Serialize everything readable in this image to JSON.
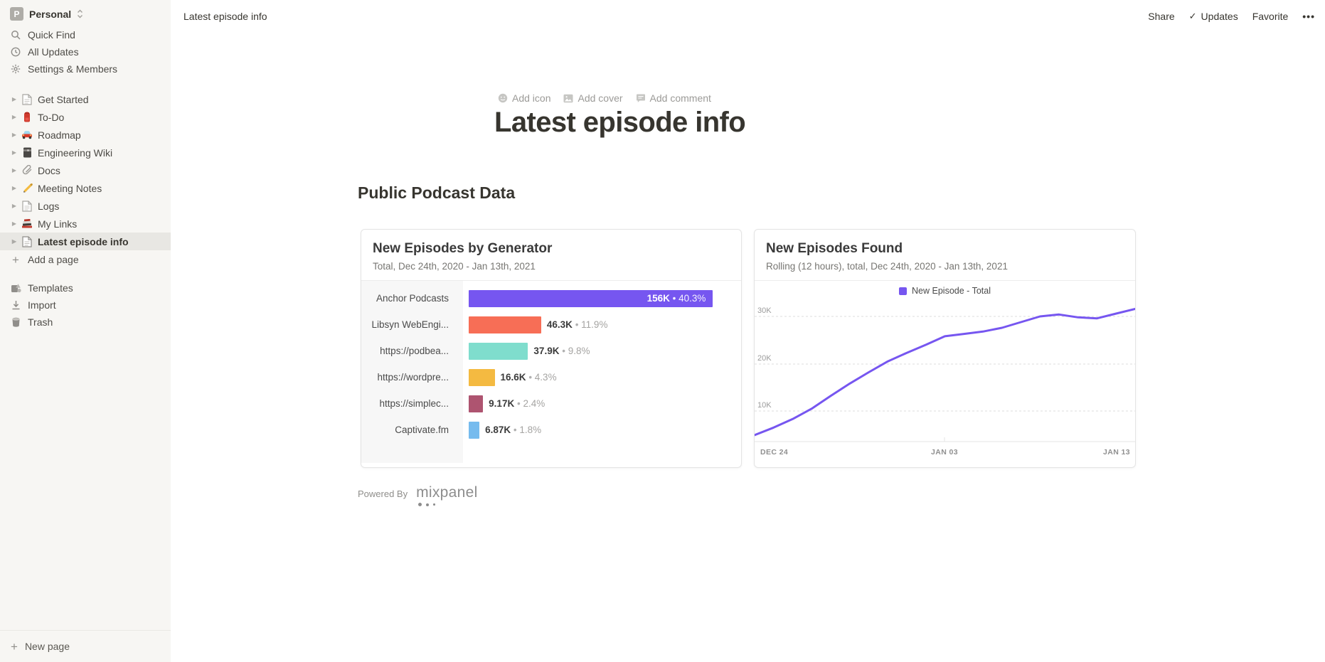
{
  "workspace": {
    "initial": "P",
    "name": "Personal"
  },
  "sidebar": {
    "menu": [
      {
        "label": "Quick Find"
      },
      {
        "label": "All Updates"
      },
      {
        "label": "Settings & Members"
      }
    ],
    "pages": [
      {
        "label": "Get Started",
        "icon": "page"
      },
      {
        "label": "To-Do",
        "icon": "backpack"
      },
      {
        "label": "Roadmap",
        "icon": "car"
      },
      {
        "label": "Engineering Wiki",
        "icon": "notebook"
      },
      {
        "label": "Docs",
        "icon": "paperclip"
      },
      {
        "label": "Meeting Notes",
        "icon": "pencil"
      },
      {
        "label": "Logs",
        "icon": "page"
      },
      {
        "label": "My Links",
        "icon": "books"
      },
      {
        "label": "Latest episode info",
        "icon": "page",
        "selected": true
      }
    ],
    "add_page_label": "Add a page",
    "footer": [
      {
        "label": "Templates"
      },
      {
        "label": "Import"
      },
      {
        "label": "Trash"
      }
    ],
    "new_page_label": "New page"
  },
  "topbar": {
    "breadcrumb": "Latest episode info",
    "share_label": "Share",
    "updates_label": "Updates",
    "favorite_label": "Favorite",
    "more_label": "•••"
  },
  "page": {
    "add_icon": "Add icon",
    "add_cover": "Add cover",
    "add_comment": "Add comment",
    "title": "Latest episode info",
    "section_heading": "Public Podcast Data",
    "powered_by": "Powered By",
    "mixpanel": "mixpanel"
  },
  "help_label": "?",
  "chart_data": [
    {
      "type": "bar",
      "title": "New Episodes by Generator",
      "subtitle": "Total, Dec 24th, 2020 - Jan 13th, 2021",
      "categories": [
        "Anchor Podcasts",
        "Libsyn WebEngi...",
        "https://podbea...",
        "https://wordpre...",
        "https://simplec...",
        "Captivate.fm"
      ],
      "values_k": [
        156,
        46.3,
        37.9,
        16.6,
        9.17,
        6.87
      ],
      "value_labels": [
        "156K",
        "46.3K",
        "37.9K",
        "16.6K",
        "9.17K",
        "6.87K"
      ],
      "percent_labels": [
        "40.3%",
        "11.9%",
        "9.8%",
        "4.3%",
        "2.4%",
        "1.8%"
      ],
      "bar_colors": [
        "#7656F0",
        "#F76E56",
        "#7FDDCD",
        "#F4BA41",
        "#AE5470",
        "#76BBEE"
      ],
      "xmax_k": 174,
      "first_value_inside_bar": true
    },
    {
      "type": "line",
      "title": "New Episodes Found",
      "subtitle": "Rolling (12 hours), total, Dec 24th, 2020 - Jan 13th, 2021",
      "legend": [
        {
          "label": "New Episode - Total",
          "color": "#7656F0"
        }
      ],
      "line_color": "#7656F0",
      "x_ticks": [
        "DEC 24",
        "JAN 03",
        "JAN 13"
      ],
      "y_ticks": [
        "10K",
        "20K",
        "30K"
      ],
      "ylim": [
        0,
        35000
      ],
      "x": [
        "Dec 24",
        "Dec 25",
        "Dec 26",
        "Dec 27",
        "Dec 28",
        "Dec 29",
        "Dec 30",
        "Dec 31",
        "Jan 01",
        "Jan 02",
        "Jan 03",
        "Jan 04",
        "Jan 05",
        "Jan 06",
        "Jan 07",
        "Jan 08",
        "Jan 09",
        "Jan 10",
        "Jan 11",
        "Jan 12",
        "Jan 13"
      ],
      "values": [
        4900,
        6500,
        8300,
        10500,
        13200,
        15800,
        18200,
        20500,
        22300,
        24000,
        25800,
        26300,
        26800,
        27600,
        28800,
        30000,
        30400,
        29800,
        29600,
        30600,
        31600
      ]
    }
  ]
}
